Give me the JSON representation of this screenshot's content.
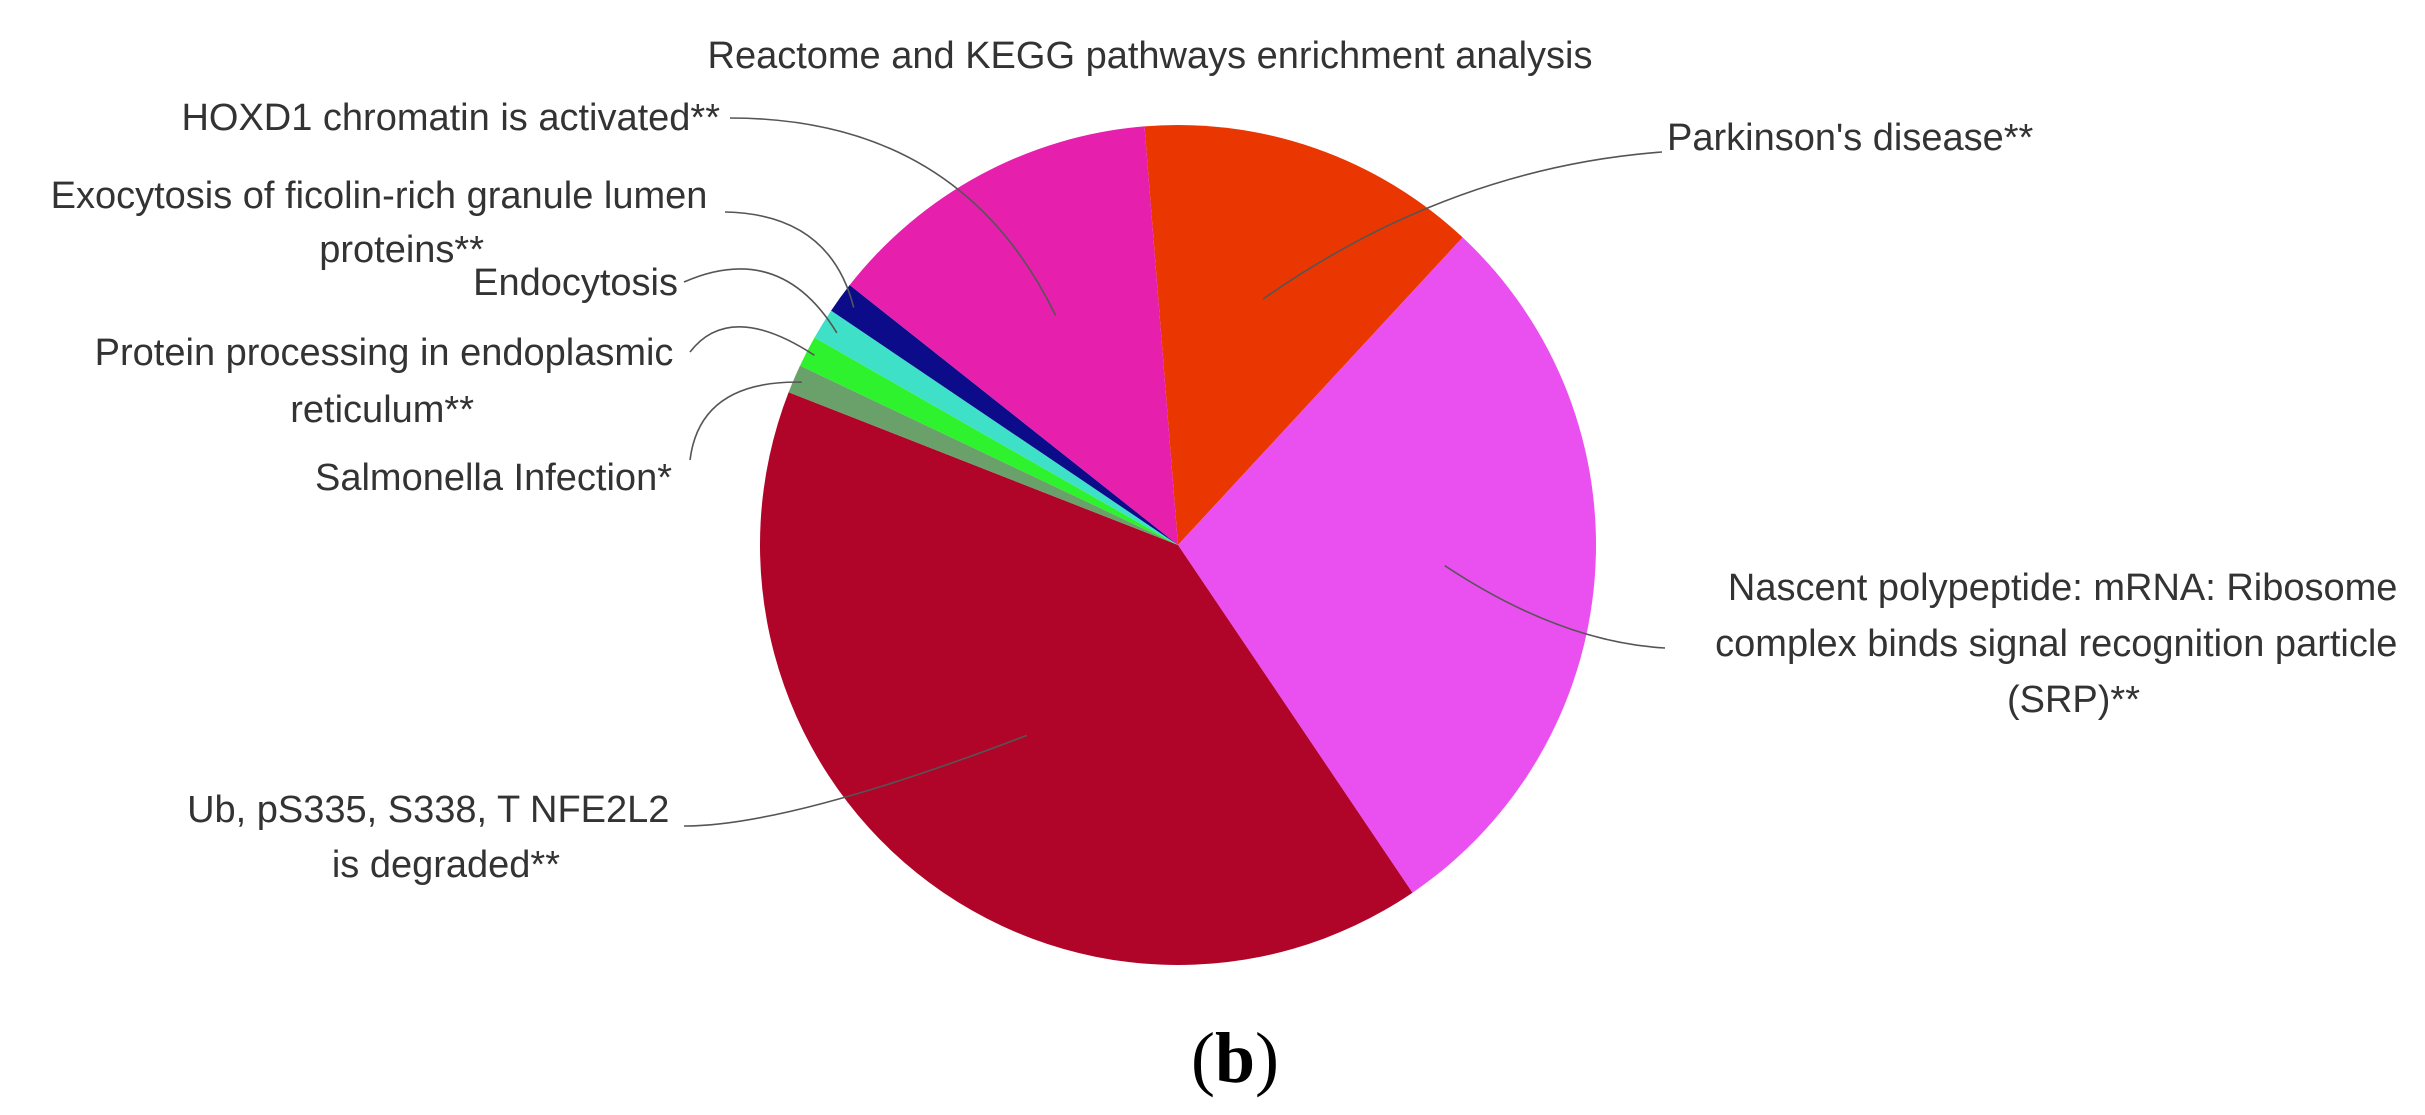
{
  "chart_data": {
    "type": "pie",
    "title": "Reactome and KEGG pathways enrichment analysis",
    "slices": [
      {
        "label": "Parkinson's disease**",
        "value": 13.2,
        "color": "#ea3600"
      },
      {
        "label": "Nascent  polypeptide: mRNA: Ribosome complex binds signal recognition particle (SRP)**",
        "value": 28.6,
        "color": "#ea4ff0"
      },
      {
        "label": "Ub, pS335, S338, T NFE2L2 is degraded**",
        "value": 40.4,
        "color": "#b10429"
      },
      {
        "label": "Salmonella Infection*",
        "value": 1.1,
        "color": "#6aa06a"
      },
      {
        "label": "Protein processing in endoplasmic reticulum**",
        "value": 1.2,
        "color": "#2ef22e"
      },
      {
        "label": "Endocytosis",
        "value": 1.2,
        "color": "#3fe0c8"
      },
      {
        "label": "Exocytosis of ficolin-rich granule lumen proteins**",
        "value": 1.2,
        "color": "#0c0c8a"
      },
      {
        "label": "HOXD1 chromatin is activated**",
        "value": 13.1,
        "color": "#e61fad"
      }
    ],
    "legend": "none"
  },
  "panel_label": {
    "open": "(",
    "letter": "b",
    "close": ")"
  }
}
